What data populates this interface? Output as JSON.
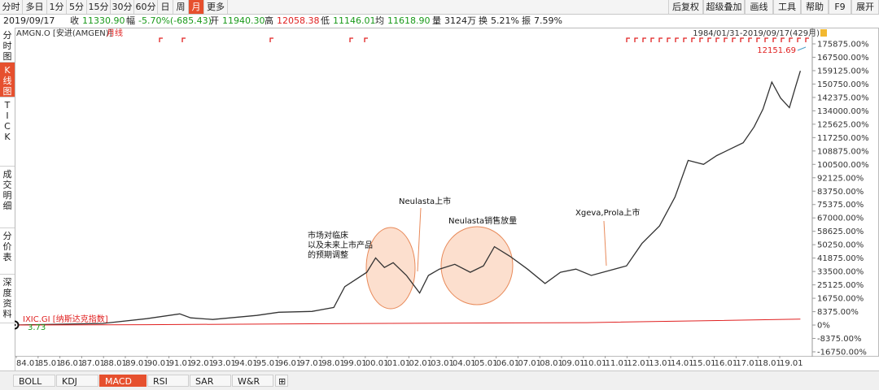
{
  "toolbar": {
    "left": [
      "分时",
      "多日",
      "1分",
      "5分",
      "15分",
      "30分",
      "60分",
      "日",
      "周",
      "月",
      "更多"
    ],
    "active": "月",
    "right": [
      "后复权",
      "超级叠加",
      "画线",
      "工具",
      "帮助",
      "F9",
      "展开"
    ]
  },
  "quote": {
    "date": "2019/09/17",
    "close_label": "收",
    "close": "11330.90",
    "change_label": "幅",
    "change": "-5.70%(-685.43)",
    "open_label": "开",
    "open": "11940.30",
    "high_label": "高",
    "high": "12058.38",
    "low_label": "低",
    "low": "11146.01",
    "avg_label": "均",
    "avg": "11618.90",
    "vol_label": "量",
    "vol": "3124万",
    "turnover_label": "换",
    "turnover": "5.21%",
    "amplitude_label": "振",
    "amplitude": "7.59%"
  },
  "sidebar": {
    "items": [
      "分时图",
      "K线图",
      "TICK",
      "成交明细",
      "分价表",
      "深度资料"
    ],
    "active": "K线图"
  },
  "chart_header": {
    "symbol": "AMGN.O [安进(AMGEN)]",
    "period": "月线",
    "range": "1984/01/31-2019/09/17(429月)",
    "max_label": "12151.69"
  },
  "overlay": {
    "label": "IXIC.GI [纳斯达克指数]",
    "value": "3.73"
  },
  "annotations": {
    "a1": [
      "市场对临床",
      "以及未来上市产品",
      "的预期调整"
    ],
    "a2": "Neulasta上市",
    "a3": "Neulasta销售放量",
    "a4": "Xgeva,Prola上市"
  },
  "colors": {
    "accent": "#e6502e",
    "up": "#e02020",
    "down": "#1a9a1a",
    "ellipse_fill": "#fbd9c6",
    "ellipse_stroke": "#e88a5a",
    "price_line": "#333333",
    "overlay_line": "#e02020"
  },
  "bottom_tabs": {
    "items": [
      "BOLL",
      "KDJ",
      "MACD",
      "RSI",
      "SAR",
      "W&R"
    ],
    "active": "MACD"
  },
  "chart_data": {
    "type": "line",
    "title": "AMGN.O [安进(AMGEN)] 月线",
    "ylabel": "",
    "ylim": [
      -16750,
      180000
    ],
    "y_ticks": [
      "175875.00%",
      "167500.00%",
      "159125.00%",
      "150750.00%",
      "142375.00%",
      "134000.00%",
      "125625.00%",
      "117250.00%",
      "108875.00%",
      "100500.00%",
      "92125.00%",
      "83750.00%",
      "75375.00%",
      "67000.00%",
      "58625.00%",
      "50250.00%",
      "41875.00%",
      "33500.00%",
      "25125.00%",
      "16750.00%",
      "8375.00%",
      "0%",
      "-8375.00%",
      "-16750.00%"
    ],
    "x_ticks": [
      "84.01",
      "85.01",
      "86.01",
      "87.01",
      "88.01",
      "89.01",
      "90.01",
      "91.01",
      "92.01",
      "93.01",
      "94.01",
      "95.01",
      "96.01",
      "97.01",
      "98.01",
      "99.01",
      "00.01",
      "01.01",
      "02.01",
      "03.01",
      "04.01",
      "05.01",
      "06.01",
      "07.01",
      "08.01",
      "09.01",
      "10.01",
      "11.01",
      "12.01",
      "13.01",
      "14.01",
      "15.01",
      "16.01",
      "17.01",
      "18.01",
      "19.01"
    ],
    "series": [
      {
        "name": "AMGN.O",
        "x": [
          1984.0,
          1988.0,
          1990.0,
          1991.5,
          1992.0,
          1993.0,
          1995.0,
          1996.0,
          1997.5,
          1998.5,
          1999.0,
          2000.0,
          2000.4,
          2000.8,
          2001.2,
          2001.8,
          2002.4,
          2002.8,
          2003.3,
          2004.0,
          2004.7,
          2005.3,
          2005.8,
          2006.5,
          2007.3,
          2008.1,
          2008.8,
          2009.5,
          2010.2,
          2011.0,
          2011.8,
          2012.5,
          2013.3,
          2014.0,
          2014.6,
          2015.3,
          2015.9,
          2016.5,
          2017.1,
          2017.6,
          2018.0,
          2018.4,
          2018.8,
          2019.2,
          2019.5,
          2019.7
        ],
        "y": [
          0,
          1000,
          4000,
          7000,
          4500,
          3500,
          6000,
          8000,
          8500,
          11000,
          24000,
          33000,
          42000,
          36000,
          39000,
          31000,
          20000,
          31000,
          35000,
          38000,
          33000,
          37000,
          49000,
          43000,
          35000,
          26000,
          33000,
          35000,
          31000,
          34000,
          37000,
          51000,
          62000,
          80000,
          103000,
          100500,
          106000,
          110000,
          114000,
          124000,
          135000,
          152000,
          142000,
          136000,
          150000,
          159000
        ]
      },
      {
        "name": "IXIC.GI",
        "x": [
          1984.0,
          1990.0,
          2000.0,
          2010.0,
          2019.7
        ],
        "y": [
          0,
          200,
          1000,
          1500,
          3700
        ]
      }
    ],
    "annotations": [
      "市场对临床以及未来上市产品的预期调整",
      "Neulasta上市",
      "Neulasta销售放量",
      "Xgeva,Prola上市"
    ]
  }
}
